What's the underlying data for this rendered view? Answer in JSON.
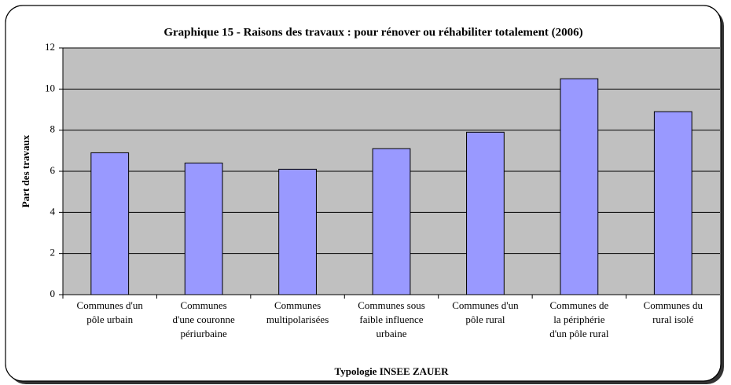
{
  "chart_data": {
    "type": "bar",
    "title": "Graphique 15 - Raisons des travaux : pour rénover ou réhabiliter totalement (2006)",
    "x_label": "Typologie INSEE ZAUER",
    "y_label": "Part des travaux",
    "categories": [
      "Communes d'un\npôle urbain",
      "Communes\nd'une couronne\npériurbaine",
      "Communes\nmultipolarisées",
      "Communes sous\nfaible influence\nurbaine",
      "Communes d'un\npôle rural",
      "Communes de\nla périphérie\nd'un pôle rural",
      "Communes du\nrural isolé"
    ],
    "values": [
      6.9,
      6.4,
      6.1,
      7.1,
      7.9,
      10.5,
      8.9
    ],
    "color": "#9999ff",
    "ylim": [
      0,
      12
    ],
    "yticks": [
      0,
      2,
      4,
      6,
      8,
      10,
      12
    ],
    "grid": true
  }
}
